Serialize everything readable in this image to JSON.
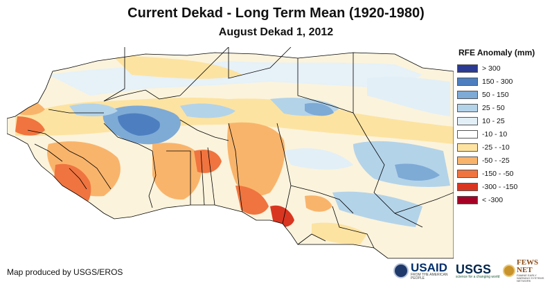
{
  "title": "Current Dekad - Long Term Mean (1920-1980)",
  "subtitle": "August Dekad 1, 2012",
  "legend": {
    "title": "RFE Anomaly (mm)",
    "items": [
      {
        "label": "> 300",
        "color": "#2b3a93"
      },
      {
        "label": "150 - 300",
        "color": "#4d7fc0"
      },
      {
        "label": "50 - 150",
        "color": "#7eaad6"
      },
      {
        "label": "25 - 50",
        "color": "#b3d3e9"
      },
      {
        "label": "10 - 25",
        "color": "#e2eff7"
      },
      {
        "label": "-10 - 10",
        "color": "#ffffff"
      },
      {
        "label": "-25 - -10",
        "color": "#fde3a1"
      },
      {
        "label": "-50 - -25",
        "color": "#f9b46b"
      },
      {
        "label": "-150 - -50",
        "color": "#f0743f"
      },
      {
        "label": "-300 - -150",
        "color": "#d93621"
      },
      {
        "label": "< -300",
        "color": "#a50026"
      }
    ]
  },
  "credit": "Map produced by USGS/EROS",
  "logos": {
    "usaid": {
      "text": "USAID",
      "sub": "FROM THE AMERICAN PEOPLE"
    },
    "usgs": {
      "text": "USGS",
      "sub": "science for a changing world"
    },
    "fewsnet": {
      "text": "FEWS NET",
      "sub": "FAMINE EARLY WARNING SYSTEMS NETWORK"
    }
  }
}
